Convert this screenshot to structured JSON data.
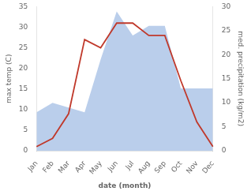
{
  "chart_data": {
    "type": "line",
    "categories": [
      "Jan",
      "Feb",
      "Mar",
      "Apr",
      "May",
      "Jun",
      "Jul",
      "Aug",
      "Sep",
      "Oct",
      "Nov",
      "Dec"
    ],
    "series": [
      {
        "type": "area",
        "color": "#aec6e8",
        "axis": "y2",
        "values": [
          8,
          10,
          9,
          8,
          19,
          29,
          24,
          26,
          26,
          13,
          13,
          13
        ]
      },
      {
        "type": "line",
        "color": "#c0392b",
        "values": [
          1,
          3,
          9,
          27,
          25,
          31,
          31,
          28,
          28,
          17,
          7,
          1
        ]
      }
    ],
    "xlabel": "date (month)",
    "ylabel": "max temp (C)",
    "y2label": "med. precipitation (kg/m2)",
    "ylim": [
      0,
      35
    ],
    "yticks": [
      0,
      5,
      10,
      15,
      20,
      25,
      30,
      35
    ],
    "y2lim": [
      0,
      30
    ],
    "y2ticks": [
      0,
      5,
      10,
      15,
      20,
      25,
      30
    ],
    "grid": false
  }
}
